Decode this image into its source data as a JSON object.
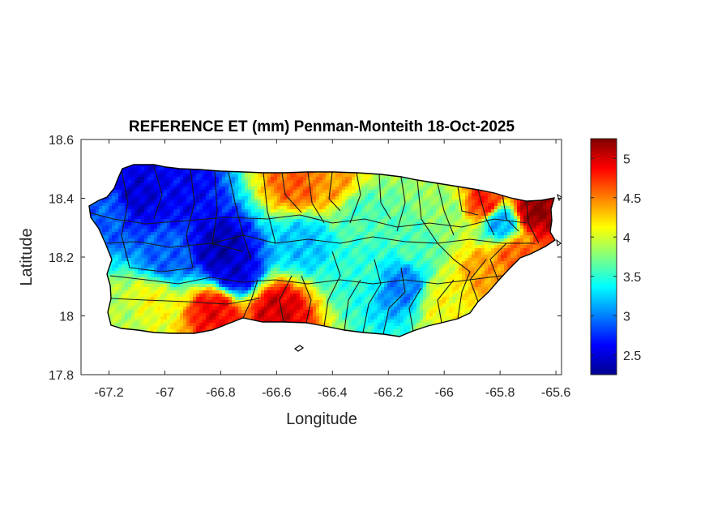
{
  "chart_data": {
    "type": "heatmap",
    "title": "REFERENCE ET (mm) Penman-Monteith 18-Oct-2025",
    "xlabel": "Longitude",
    "ylabel": "Latitude",
    "xlim": [
      -67.3,
      -65.58
    ],
    "ylim": [
      17.8,
      18.6
    ],
    "x_ticks": [
      -67.2,
      -67,
      -66.8,
      -66.6,
      -66.4,
      -66.2,
      -66,
      -65.8,
      -65.6
    ],
    "x_tick_labels": [
      "-67.2",
      "-67",
      "-66.8",
      "-66.6",
      "-66.4",
      "-66.2",
      "-66",
      "-65.8",
      "-65.6"
    ],
    "y_ticks": [
      17.8,
      18,
      18.2,
      18.4,
      18.6
    ],
    "y_tick_labels": [
      "17.8",
      "18",
      "18.2",
      "18.4",
      "18.6"
    ],
    "colorbar": {
      "colormap": "jet",
      "min": 2.25,
      "max": 5.25,
      "ticks": [
        2.5,
        3,
        3.5,
        4,
        4.5,
        5
      ],
      "tick_labels": [
        "2.5",
        "3",
        "3.5",
        "4",
        "4.5",
        "5"
      ],
      "placement": "right"
    },
    "regional_values": [
      {
        "lon": -67.2,
        "lat": 18.35,
        "value": 2.9
      },
      {
        "lon": -67.1,
        "lat": 18.4,
        "value": 2.5
      },
      {
        "lon": -66.95,
        "lat": 18.43,
        "value": 2.6
      },
      {
        "lon": -66.8,
        "lat": 18.22,
        "value": 2.4
      },
      {
        "lon": -66.75,
        "lat": 18.15,
        "value": 2.5
      },
      {
        "lon": -67.0,
        "lat": 18.2,
        "value": 2.9
      },
      {
        "lon": -67.15,
        "lat": 18.0,
        "value": 3.9
      },
      {
        "lon": -67.05,
        "lat": 18.05,
        "value": 4.1
      },
      {
        "lon": -66.82,
        "lat": 18.02,
        "value": 4.9
      },
      {
        "lon": -66.6,
        "lat": 18.02,
        "value": 5.0
      },
      {
        "lon": -66.52,
        "lat": 18.45,
        "value": 4.6
      },
      {
        "lon": -66.4,
        "lat": 18.45,
        "value": 4.4
      },
      {
        "lon": -66.5,
        "lat": 18.25,
        "value": 3.2
      },
      {
        "lon": -66.3,
        "lat": 18.35,
        "value": 3.6
      },
      {
        "lon": -66.3,
        "lat": 18.15,
        "value": 3.5
      },
      {
        "lon": -66.15,
        "lat": 18.1,
        "value": 3.0
      },
      {
        "lon": -66.1,
        "lat": 18.25,
        "value": 3.6
      },
      {
        "lon": -66.0,
        "lat": 18.35,
        "value": 3.8
      },
      {
        "lon": -66.0,
        "lat": 18.05,
        "value": 4.1
      },
      {
        "lon": -65.85,
        "lat": 18.38,
        "value": 4.8
      },
      {
        "lon": -65.8,
        "lat": 18.32,
        "value": 3.1
      },
      {
        "lon": -65.68,
        "lat": 18.36,
        "value": 5.2
      },
      {
        "lon": -65.85,
        "lat": 18.15,
        "value": 4.4
      },
      {
        "lon": -65.75,
        "lat": 18.2,
        "value": 4.6
      }
    ]
  }
}
